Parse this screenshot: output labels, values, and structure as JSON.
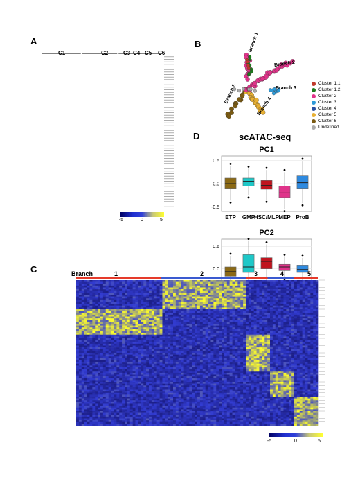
{
  "panels": {
    "A": {
      "label": "A",
      "clusters": [
        "C1",
        "C2",
        "C3",
        "C4",
        "C5",
        "C6"
      ],
      "colorbar": {
        "ticks": [
          "-5",
          "0",
          "5"
        ]
      }
    },
    "B": {
      "label": "B",
      "branch_labels": [
        "Branch 1",
        "Branch 2",
        "Branch 3",
        "Branch 4",
        "Branch 5"
      ],
      "legend": [
        {
          "name": "Cluster 1.1",
          "color": "#c0392b"
        },
        {
          "name": "Cluster 1.2",
          "color": "#1e7b1e"
        },
        {
          "name": "Cluster 2",
          "color": "#e0338a"
        },
        {
          "name": "Cluster 3",
          "color": "#2e9ad8"
        },
        {
          "name": "Cluster 4",
          "color": "#2a4fa0"
        },
        {
          "name": "Cluster 5",
          "color": "#e8b033"
        },
        {
          "name": "Cluster 6",
          "color": "#7a5a12"
        },
        {
          "name": "Undefined",
          "color": "#aaaaaa"
        }
      ]
    },
    "C": {
      "label": "C",
      "branch_title": "Branch",
      "branches": [
        "1",
        "2",
        "3",
        "4",
        "5"
      ],
      "colorbar": {
        "ticks": [
          "-5",
          "0",
          "5"
        ]
      }
    },
    "D": {
      "label": "D",
      "title": "scATAC-seq"
    }
  },
  "chart_data": [
    {
      "type": "box",
      "title": "PC1",
      "categories": [
        "ETP",
        "GMP",
        "HSC/MLP",
        "MEP",
        "ProB"
      ],
      "colors": [
        "#8b6914",
        "#1ec8c8",
        "#c0141e",
        "#e0338a",
        "#2e8ae0"
      ],
      "ylim": [
        -0.6,
        0.6
      ],
      "yticks": [
        "0.5",
        "0.0",
        "-0.5"
      ],
      "medians": [
        0.0,
        0.05,
        -0.04,
        -0.2,
        0.02
      ],
      "q1": [
        -0.1,
        -0.05,
        -0.12,
        -0.3,
        -0.1
      ],
      "q3": [
        0.12,
        0.12,
        0.07,
        -0.05,
        0.17
      ]
    },
    {
      "type": "box",
      "title": "PC2",
      "categories": [
        "ETP",
        "GMP",
        "HSC/MLP",
        "MEP",
        "ProB"
      ],
      "colors": [
        "#8b6914",
        "#1ec8c8",
        "#c0141e",
        "#e0338a",
        "#2e8ae0"
      ],
      "ylim": [
        -0.7,
        0.8
      ],
      "yticks": [
        "0.6",
        "0.0",
        "-0.6"
      ],
      "medians": [
        -0.08,
        0.05,
        0.2,
        0.05,
        -0.02
      ],
      "q1": [
        -0.2,
        -0.1,
        0.0,
        -0.05,
        -0.1
      ],
      "q3": [
        0.05,
        0.38,
        0.3,
        0.12,
        0.08
      ]
    }
  ]
}
